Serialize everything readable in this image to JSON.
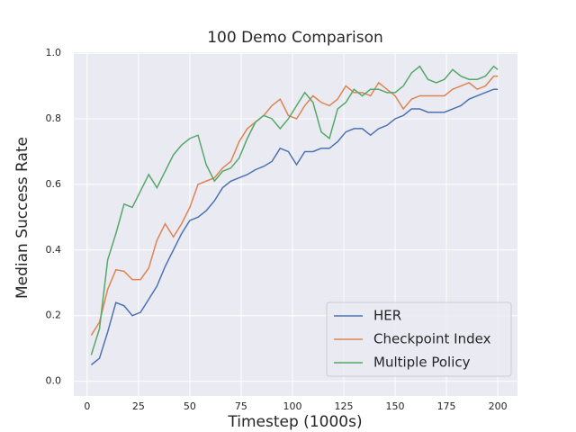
{
  "chart_data": {
    "type": "line",
    "title": "100 Demo Comparison",
    "x_label": "Timestep (1000s)",
    "y_label": "Median Success Rate",
    "x": [
      2,
      6,
      10,
      14,
      18,
      22,
      26,
      30,
      34,
      38,
      42,
      46,
      50,
      54,
      58,
      62,
      66,
      70,
      74,
      78,
      82,
      86,
      90,
      94,
      98,
      102,
      106,
      110,
      114,
      118,
      122,
      126,
      130,
      134,
      138,
      142,
      146,
      150,
      154,
      158,
      162,
      166,
      170,
      174,
      178,
      182,
      186,
      190,
      194,
      198,
      200
    ],
    "series": [
      {
        "name": "HER",
        "color": "#4c72b0",
        "values": [
          0.05,
          0.07,
          0.15,
          0.24,
          0.23,
          0.2,
          0.21,
          0.25,
          0.29,
          0.35,
          0.4,
          0.45,
          0.49,
          0.5,
          0.52,
          0.55,
          0.59,
          0.61,
          0.62,
          0.63,
          0.645,
          0.655,
          0.67,
          0.71,
          0.7,
          0.66,
          0.7,
          0.7,
          0.71,
          0.71,
          0.73,
          0.76,
          0.77,
          0.77,
          0.75,
          0.77,
          0.78,
          0.8,
          0.81,
          0.83,
          0.83,
          0.82,
          0.82,
          0.82,
          0.83,
          0.84,
          0.86,
          0.87,
          0.88,
          0.89,
          0.89
        ]
      },
      {
        "name": "Checkpoint Index",
        "color": "#dd8452",
        "values": [
          0.14,
          0.18,
          0.28,
          0.34,
          0.335,
          0.31,
          0.31,
          0.345,
          0.43,
          0.48,
          0.44,
          0.48,
          0.53,
          0.6,
          0.61,
          0.62,
          0.65,
          0.67,
          0.73,
          0.77,
          0.79,
          0.81,
          0.84,
          0.86,
          0.81,
          0.8,
          0.84,
          0.87,
          0.85,
          0.84,
          0.86,
          0.9,
          0.88,
          0.88,
          0.87,
          0.91,
          0.89,
          0.87,
          0.83,
          0.86,
          0.87,
          0.87,
          0.87,
          0.87,
          0.89,
          0.9,
          0.91,
          0.89,
          0.9,
          0.93,
          0.93
        ]
      },
      {
        "name": "Multiple Policy",
        "color": "#55a868",
        "values": [
          0.08,
          0.16,
          0.37,
          0.45,
          0.54,
          0.53,
          0.58,
          0.63,
          0.59,
          0.64,
          0.69,
          0.72,
          0.74,
          0.75,
          0.66,
          0.61,
          0.64,
          0.65,
          0.68,
          0.74,
          0.79,
          0.81,
          0.8,
          0.77,
          0.8,
          0.84,
          0.88,
          0.85,
          0.76,
          0.74,
          0.83,
          0.85,
          0.89,
          0.87,
          0.89,
          0.89,
          0.88,
          0.88,
          0.9,
          0.94,
          0.96,
          0.92,
          0.91,
          0.92,
          0.95,
          0.93,
          0.92,
          0.92,
          0.93,
          0.96,
          0.95
        ]
      }
    ],
    "xlim": [
      -6.5,
      209.6
    ],
    "ylim": [
      -0.045,
      1.003
    ],
    "xticks": [
      0,
      25,
      50,
      75,
      100,
      125,
      150,
      175,
      200
    ],
    "yticks": [
      {
        "value": 0,
        "label": "0.0"
      },
      0.2,
      0.4,
      0.6,
      0.8,
      {
        "value": 1,
        "label": "1.0"
      }
    ],
    "grid": true,
    "legend": "lower right",
    "background": "#eaeaf2"
  }
}
